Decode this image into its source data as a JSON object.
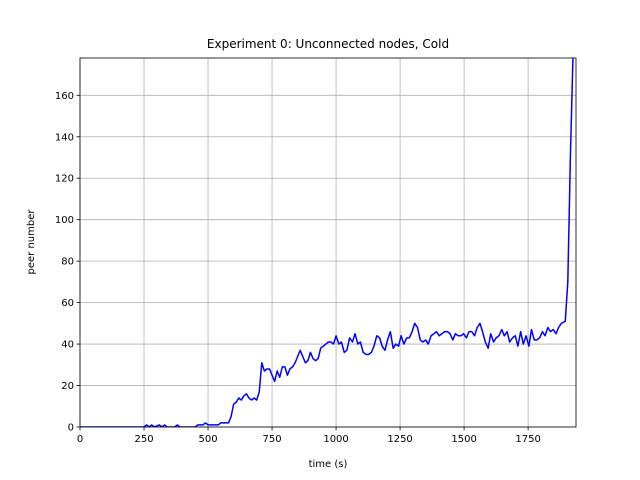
{
  "chart_data": {
    "type": "line",
    "title": "Experiment 0: Unconnected nodes, Cold",
    "xlabel": "time (s)",
    "ylabel": "peer number",
    "color": "#0000ff",
    "grid": true,
    "xlim": [
      0,
      1937
    ],
    "ylim": [
      0,
      178
    ],
    "xticks": [
      0,
      250,
      500,
      750,
      1000,
      1250,
      1500,
      1750
    ],
    "yticks": [
      0,
      20,
      40,
      60,
      80,
      100,
      120,
      140,
      160
    ],
    "x": [
      0,
      250,
      260,
      270,
      280,
      290,
      310,
      320,
      330,
      340,
      370,
      380,
      390,
      450,
      460,
      480,
      490,
      500,
      540,
      550,
      580,
      590,
      600,
      610,
      620,
      630,
      640,
      650,
      660,
      670,
      680,
      690,
      700,
      710,
      720,
      730,
      740,
      750,
      760,
      770,
      780,
      790,
      800,
      810,
      820,
      830,
      840,
      850,
      860,
      870,
      880,
      890,
      900,
      910,
      920,
      930,
      940,
      950,
      960,
      970,
      980,
      990,
      1000,
      1011,
      1021,
      1032,
      1042,
      1053,
      1064,
      1074,
      1085,
      1095,
      1106,
      1117,
      1127,
      1138,
      1148,
      1159,
      1170,
      1180,
      1191,
      1201,
      1212,
      1223,
      1233,
      1244,
      1254,
      1265,
      1276,
      1286,
      1297,
      1307,
      1318,
      1329,
      1339,
      1350,
      1360,
      1371,
      1382,
      1392,
      1403,
      1413,
      1424,
      1435,
      1445,
      1456,
      1466,
      1477,
      1488,
      1498,
      1509,
      1519,
      1530,
      1541,
      1551,
      1562,
      1572,
      1583,
      1594,
      1604,
      1615,
      1625,
      1636,
      1647,
      1657,
      1668,
      1678,
      1689,
      1700,
      1710,
      1721,
      1731,
      1742,
      1753,
      1763,
      1774,
      1784,
      1795,
      1806,
      1816,
      1827,
      1837,
      1848,
      1859,
      1869,
      1880,
      1895,
      1905,
      1915,
      1925
    ],
    "values": [
      0,
      0,
      1,
      0,
      1,
      0,
      1,
      0,
      1,
      0,
      0,
      1,
      0,
      0,
      1,
      1,
      2,
      1,
      1,
      2,
      2,
      5,
      11,
      12,
      14,
      13,
      15,
      16,
      14,
      13,
      14,
      13,
      17,
      31,
      27,
      28,
      28,
      25,
      22,
      27,
      24,
      29,
      29,
      25,
      28,
      29,
      31,
      34,
      37,
      34,
      31,
      32,
      36,
      33,
      32,
      33,
      38,
      39,
      40,
      41,
      41,
      40,
      44,
      40,
      41,
      36,
      37,
      43,
      41,
      45,
      40,
      41,
      36,
      35,
      35,
      36,
      39,
      44,
      43,
      39,
      37,
      42,
      46,
      38,
      40,
      39,
      44,
      40,
      43,
      43,
      46,
      50,
      48,
      42,
      41,
      42,
      40,
      44,
      45,
      46,
      44,
      45,
      46,
      46,
      45,
      42,
      45,
      44,
      44,
      45,
      43,
      46,
      46,
      44,
      48,
      50,
      46,
      41,
      38,
      45,
      41,
      43,
      44,
      47,
      44,
      46,
      41,
      43,
      44,
      39,
      46,
      40,
      44,
      39,
      47,
      42,
      42,
      43,
      46,
      44,
      48,
      46,
      47,
      45,
      48,
      50,
      51,
      70,
      130,
      178
    ]
  }
}
